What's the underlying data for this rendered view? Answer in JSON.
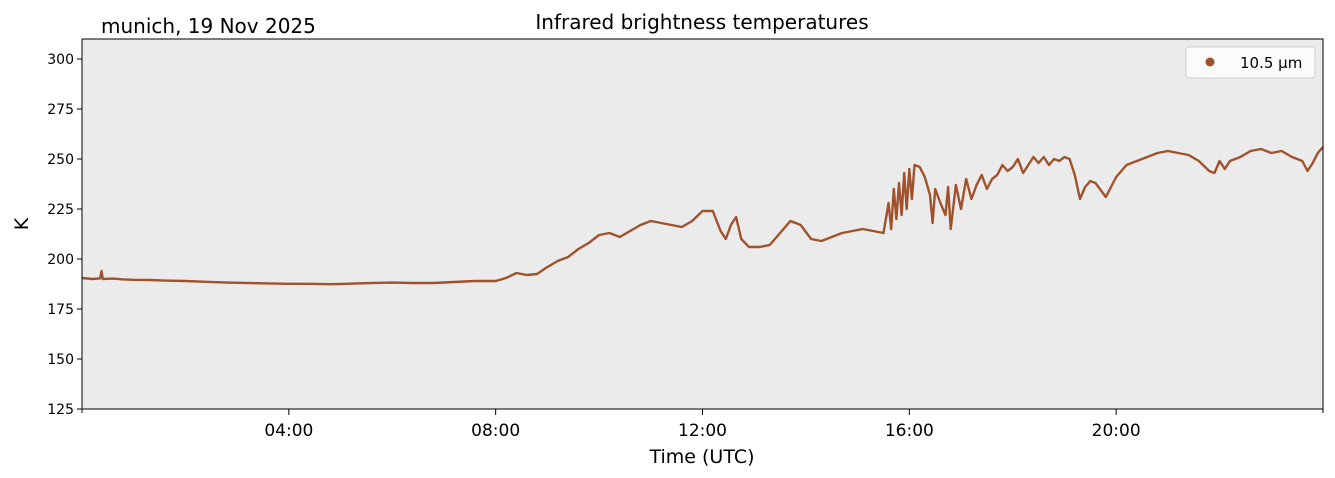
{
  "chart_data": {
    "type": "line",
    "title": "Infrared brightness temperatures",
    "location_date": "munich, 19 Nov 2025",
    "xlabel": "Time (UTC)",
    "ylabel": "K",
    "xlim_hours": [
      0,
      24
    ],
    "ylim": [
      125,
      310
    ],
    "y_ticks": [
      125,
      150,
      175,
      200,
      225,
      250,
      275,
      300
    ],
    "x_ticks": [
      {
        "hour": 4,
        "label": "04:00"
      },
      {
        "hour": 8,
        "label": "08:00"
      },
      {
        "hour": 12,
        "label": "12:00"
      },
      {
        "hour": 16,
        "label": "16:00"
      },
      {
        "hour": 20,
        "label": "20:00"
      }
    ],
    "x_minor_ticks_hours": [
      0,
      24
    ],
    "legend": {
      "location": "top-right"
    },
    "series": [
      {
        "name": "10.5 µm",
        "color": "#a0522d",
        "points": [
          [
            0.0,
            190.5
          ],
          [
            0.2,
            190.0
          ],
          [
            0.35,
            190.3
          ],
          [
            0.38,
            194.0
          ],
          [
            0.4,
            190.0
          ],
          [
            0.6,
            190.2
          ],
          [
            0.8,
            189.8
          ],
          [
            1.0,
            189.6
          ],
          [
            1.3,
            189.5
          ],
          [
            1.6,
            189.2
          ],
          [
            2.0,
            189.0
          ],
          [
            2.4,
            188.6
          ],
          [
            2.8,
            188.2
          ],
          [
            3.2,
            188.0
          ],
          [
            3.6,
            187.8
          ],
          [
            4.0,
            187.6
          ],
          [
            4.4,
            187.6
          ],
          [
            4.8,
            187.4
          ],
          [
            5.0,
            187.5
          ],
          [
            5.3,
            187.8
          ],
          [
            5.6,
            188.0
          ],
          [
            6.0,
            188.2
          ],
          [
            6.4,
            188.0
          ],
          [
            6.8,
            188.0
          ],
          [
            7.2,
            188.5
          ],
          [
            7.6,
            189.0
          ],
          [
            8.0,
            189.0
          ],
          [
            8.2,
            190.5
          ],
          [
            8.4,
            193.0
          ],
          [
            8.6,
            192.0
          ],
          [
            8.8,
            192.5
          ],
          [
            9.0,
            196.0
          ],
          [
            9.2,
            199.0
          ],
          [
            9.4,
            201.0
          ],
          [
            9.6,
            205.0
          ],
          [
            9.8,
            208.0
          ],
          [
            10.0,
            212.0
          ],
          [
            10.2,
            213.0
          ],
          [
            10.4,
            211.0
          ],
          [
            10.6,
            214.0
          ],
          [
            10.8,
            217.0
          ],
          [
            11.0,
            219.0
          ],
          [
            11.2,
            218.0
          ],
          [
            11.4,
            217.0
          ],
          [
            11.6,
            216.0
          ],
          [
            11.8,
            219.0
          ],
          [
            12.0,
            224.0
          ],
          [
            12.2,
            224.0
          ],
          [
            12.35,
            214.0
          ],
          [
            12.45,
            210.0
          ],
          [
            12.55,
            217.0
          ],
          [
            12.65,
            221.0
          ],
          [
            12.75,
            210.0
          ],
          [
            12.9,
            206.0
          ],
          [
            13.1,
            206.0
          ],
          [
            13.3,
            207.0
          ],
          [
            13.5,
            213.0
          ],
          [
            13.7,
            219.0
          ],
          [
            13.9,
            217.0
          ],
          [
            14.1,
            210.0
          ],
          [
            14.3,
            209.0
          ],
          [
            14.5,
            211.0
          ],
          [
            14.7,
            213.0
          ],
          [
            14.9,
            214.0
          ],
          [
            15.1,
            215.0
          ],
          [
            15.3,
            214.0
          ],
          [
            15.5,
            213.0
          ],
          [
            15.6,
            228.0
          ],
          [
            15.65,
            215.0
          ],
          [
            15.7,
            235.0
          ],
          [
            15.75,
            220.0
          ],
          [
            15.8,
            238.0
          ],
          [
            15.85,
            222.0
          ],
          [
            15.9,
            243.0
          ],
          [
            15.95,
            225.0
          ],
          [
            16.0,
            245.0
          ],
          [
            16.05,
            230.0
          ],
          [
            16.1,
            247.0
          ],
          [
            16.2,
            246.0
          ],
          [
            16.3,
            241.0
          ],
          [
            16.4,
            232.0
          ],
          [
            16.45,
            218.0
          ],
          [
            16.5,
            235.0
          ],
          [
            16.6,
            228.0
          ],
          [
            16.7,
            222.0
          ],
          [
            16.75,
            236.0
          ],
          [
            16.8,
            215.0
          ],
          [
            16.9,
            237.0
          ],
          [
            17.0,
            225.0
          ],
          [
            17.1,
            240.0
          ],
          [
            17.2,
            230.0
          ],
          [
            17.3,
            237.0
          ],
          [
            17.4,
            242.0
          ],
          [
            17.5,
            235.0
          ],
          [
            17.6,
            240.0
          ],
          [
            17.7,
            242.0
          ],
          [
            17.8,
            247.0
          ],
          [
            17.9,
            244.0
          ],
          [
            18.0,
            246.0
          ],
          [
            18.1,
            250.0
          ],
          [
            18.2,
            243.0
          ],
          [
            18.3,
            247.0
          ],
          [
            18.4,
            251.0
          ],
          [
            18.5,
            248.0
          ],
          [
            18.6,
            251.0
          ],
          [
            18.7,
            247.0
          ],
          [
            18.8,
            250.0
          ],
          [
            18.9,
            249.0
          ],
          [
            19.0,
            251.0
          ],
          [
            19.1,
            250.0
          ],
          [
            19.2,
            242.0
          ],
          [
            19.3,
            230.0
          ],
          [
            19.4,
            236.0
          ],
          [
            19.5,
            239.0
          ],
          [
            19.6,
            238.0
          ],
          [
            19.8,
            231.0
          ],
          [
            20.0,
            241.0
          ],
          [
            20.2,
            247.0
          ],
          [
            20.4,
            249.0
          ],
          [
            20.6,
            251.0
          ],
          [
            20.8,
            253.0
          ],
          [
            21.0,
            254.0
          ],
          [
            21.2,
            253.0
          ],
          [
            21.4,
            252.0
          ],
          [
            21.6,
            249.0
          ],
          [
            21.8,
            244.0
          ],
          [
            21.9,
            243.0
          ],
          [
            22.0,
            249.0
          ],
          [
            22.1,
            245.0
          ],
          [
            22.2,
            249.0
          ],
          [
            22.4,
            251.0
          ],
          [
            22.6,
            254.0
          ],
          [
            22.8,
            255.0
          ],
          [
            23.0,
            253.0
          ],
          [
            23.2,
            254.0
          ],
          [
            23.4,
            251.0
          ],
          [
            23.6,
            249.0
          ],
          [
            23.7,
            244.0
          ],
          [
            23.8,
            248.0
          ],
          [
            23.9,
            253.0
          ],
          [
            24.0,
            256.0
          ]
        ]
      }
    ]
  }
}
